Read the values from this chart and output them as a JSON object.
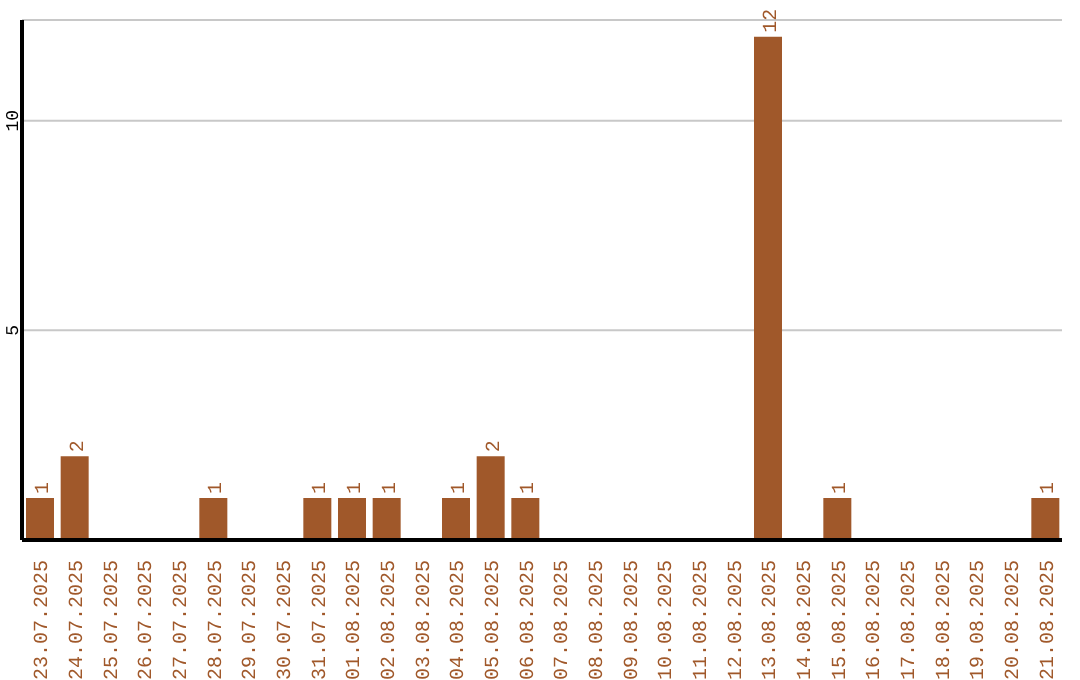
{
  "chart_data": {
    "type": "bar",
    "categories": [
      "23.07.2025",
      "24.07.2025",
      "25.07.2025",
      "26.07.2025",
      "27.07.2025",
      "28.07.2025",
      "29.07.2025",
      "30.07.2025",
      "31.07.2025",
      "01.08.2025",
      "02.08.2025",
      "03.08.2025",
      "04.08.2025",
      "05.08.2025",
      "06.08.2025",
      "07.08.2025",
      "08.08.2025",
      "09.08.2025",
      "10.08.2025",
      "11.08.2025",
      "12.08.2025",
      "13.08.2025",
      "14.08.2025",
      "15.08.2025",
      "16.08.2025",
      "17.08.2025",
      "18.08.2025",
      "19.08.2025",
      "20.08.2025",
      "21.08.2025"
    ],
    "values": [
      1,
      2,
      0,
      0,
      0,
      1,
      0,
      0,
      1,
      1,
      1,
      0,
      1,
      2,
      1,
      0,
      0,
      0,
      0,
      0,
      0,
      12,
      0,
      1,
      0,
      0,
      0,
      0,
      0,
      1
    ],
    "value_labels": [
      "1",
      "2",
      null,
      null,
      null,
      "1",
      null,
      null,
      "1",
      "1",
      "1",
      null,
      "1",
      "2",
      "1",
      null,
      null,
      null,
      null,
      null,
      null,
      "12",
      null,
      "1",
      null,
      null,
      null,
      null,
      null,
      "1"
    ],
    "color": "#a0582a",
    "ylim": [
      0,
      12.4
    ],
    "yticks": [
      5,
      10
    ],
    "grid": "y"
  }
}
